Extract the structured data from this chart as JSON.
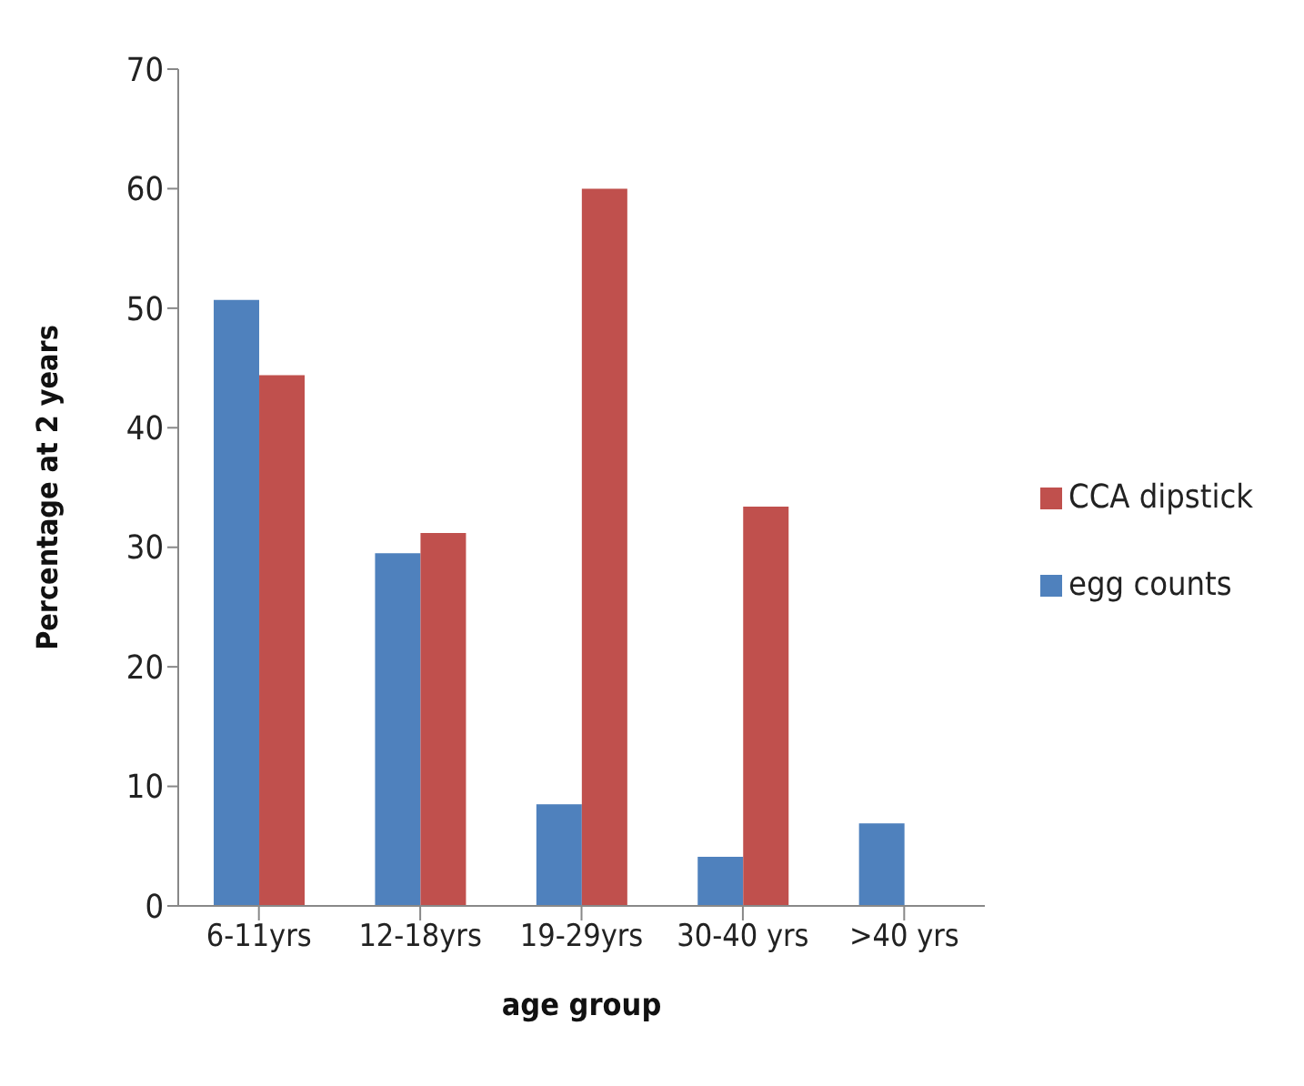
{
  "chart_data": {
    "type": "bar",
    "xlabel": "age group",
    "ylabel": "Percentage at 2 years",
    "categories": [
      "6-11yrs",
      "12-18yrs",
      "19-29yrs",
      "30-40 yrs",
      ">40 yrs"
    ],
    "series": [
      {
        "name": "egg counts",
        "color": "#4f81bd",
        "values": [
          50.7,
          29.5,
          8.5,
          4.1,
          6.9
        ]
      },
      {
        "name": "CCA dipstick",
        "color": "#c0504d",
        "values": [
          44.4,
          31.2,
          60.0,
          33.4,
          0
        ]
      }
    ],
    "ylim": [
      0,
      70
    ],
    "yticks": [
      0,
      10,
      20,
      30,
      40,
      50,
      60,
      70
    ],
    "grid": false,
    "legend": "right"
  }
}
